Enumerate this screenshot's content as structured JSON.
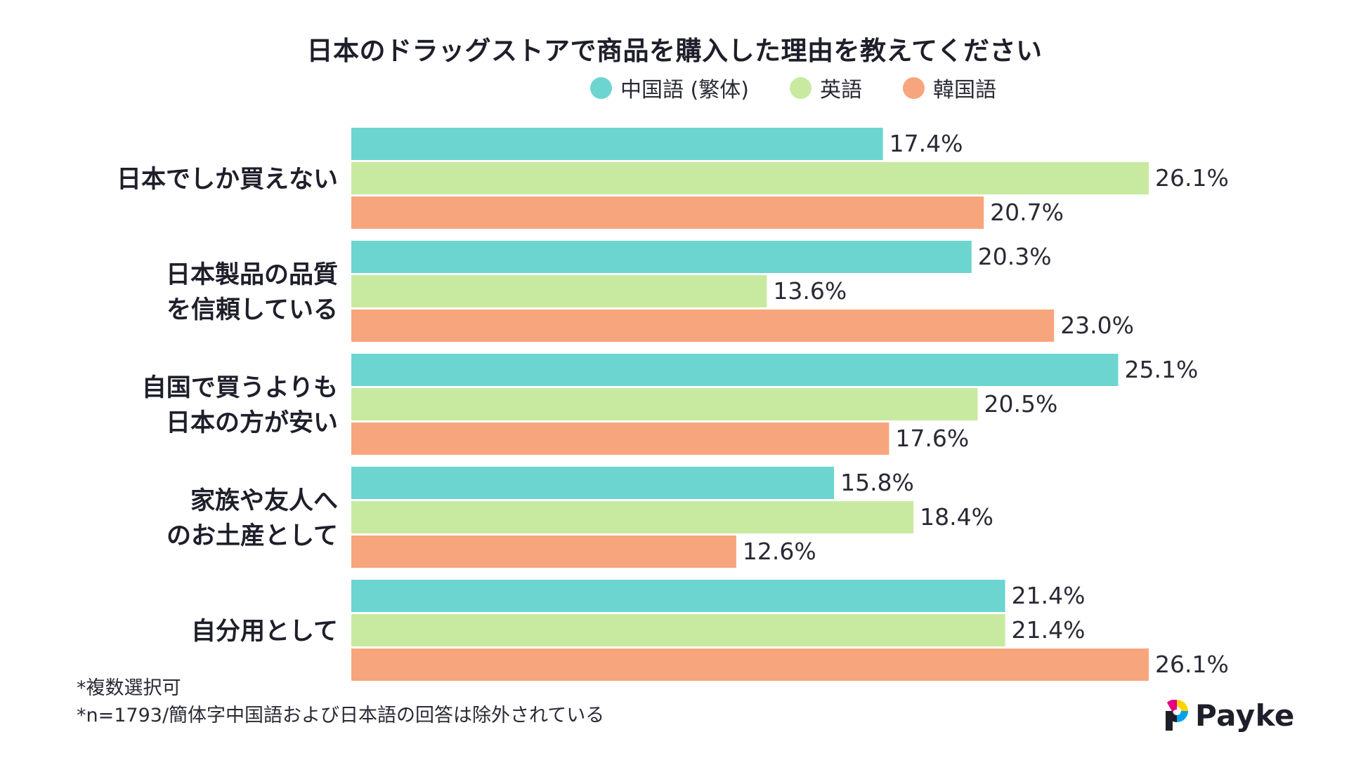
{
  "chart_data": {
    "type": "bar",
    "orientation": "horizontal",
    "title": "日本のドラッグストアで商品を購入した理由を教えてください",
    "categories": [
      [
        "日本でしか買えない"
      ],
      [
        "日本製品の品質",
        "を信頼している"
      ],
      [
        "自国で買うよりも",
        "日本の方が安い"
      ],
      [
        "家族や友人へ",
        "のお土産として"
      ],
      [
        "自分用として"
      ]
    ],
    "series": [
      {
        "name": "中国語 (繁体)",
        "color": "#6dd5cf",
        "values": [
          17.4,
          20.3,
          25.1,
          15.8,
          21.4
        ],
        "labels": [
          "17.4%",
          "20.3%",
          "25.1%",
          "15.8%",
          "21.4%"
        ]
      },
      {
        "name": "英語",
        "color": "#c8eaa0",
        "values": [
          26.1,
          13.6,
          20.5,
          18.4,
          21.4
        ],
        "labels": [
          "26.1%",
          "13.6%",
          "20.5%",
          "18.4%",
          "21.4%"
        ]
      },
      {
        "name": "韓国語",
        "color": "#f7a57d",
        "values": [
          20.7,
          23.0,
          17.6,
          12.6,
          26.1
        ],
        "labels": [
          "20.7%",
          "23.0%",
          "17.6%",
          "12.6%",
          "26.1%"
        ]
      }
    ],
    "legend_position": "top-right",
    "grid": false,
    "xlim": [
      0,
      26.1
    ]
  },
  "notes": {
    "line1": "*複数選択可",
    "line2": "*n=1793/簡体字中国語および日本語の回答は除外されている"
  },
  "logo": {
    "text": "Payke",
    "colors": [
      "#e5007f",
      "#ffd400",
      "#00a0e9",
      "#1f1f2b"
    ]
  }
}
